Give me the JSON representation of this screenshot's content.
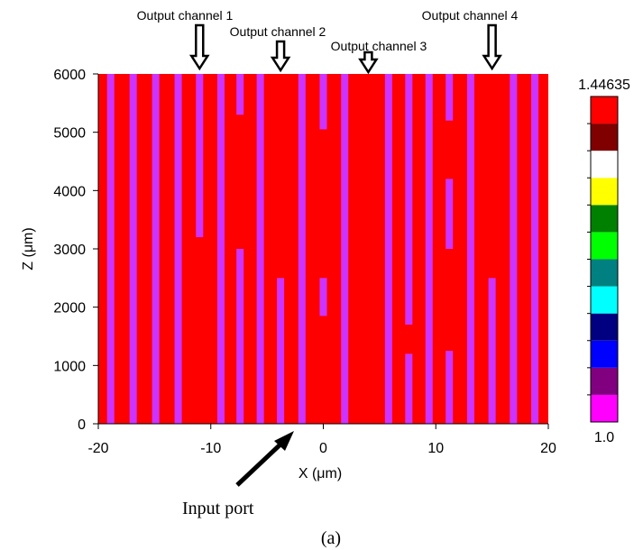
{
  "figure": {
    "caption": "(a)",
    "input_label": "Input port"
  },
  "chart_data": {
    "type": "heatmap",
    "xlabel": "X (μm)",
    "ylabel": "Z (μm)",
    "xlim": [
      -20,
      20
    ],
    "ylim": [
      0,
      6000
    ],
    "x_ticks": [
      "-20",
      "-10",
      "0",
      "10",
      "20"
    ],
    "y_ticks": [
      "0",
      "1000",
      "2000",
      "3000",
      "4000",
      "5000",
      "6000"
    ],
    "background_color": "#ff0000",
    "guide_color": "#cc33ff",
    "guides": [
      {
        "x": -18.9,
        "z0": 0,
        "z1": 6000
      },
      {
        "x": -16.9,
        "z0": 0,
        "z1": 6000
      },
      {
        "x": -14.9,
        "z0": 0,
        "z1": 6000
      },
      {
        "x": -12.9,
        "z0": 0,
        "z1": 6000
      },
      {
        "x": -11.0,
        "z0": 3200,
        "z1": 6000
      },
      {
        "x": -9.1,
        "z0": 0,
        "z1": 6000
      },
      {
        "x": -7.4,
        "z0": 0,
        "z1": 3000
      },
      {
        "x": -7.4,
        "z0": 5300,
        "z1": 6000
      },
      {
        "x": -5.6,
        "z0": 0,
        "z1": 6000
      },
      {
        "x": -3.8,
        "z0": 0,
        "z1": 2500
      },
      {
        "x": -1.9,
        "z0": 0,
        "z1": 6000
      },
      {
        "x": 0.0,
        "z0": 1850,
        "z1": 2500
      },
      {
        "x": 0.0,
        "z0": 5050,
        "z1": 6000
      },
      {
        "x": 1.9,
        "z0": 0,
        "z1": 6000
      },
      {
        "x": 5.8,
        "z0": 0,
        "z1": 6000
      },
      {
        "x": 7.6,
        "z0": 1700,
        "z1": 6000
      },
      {
        "x": 7.6,
        "z0": 0,
        "z1": 1200
      },
      {
        "x": 9.4,
        "z0": 0,
        "z1": 6000
      },
      {
        "x": 11.2,
        "z0": 0,
        "z1": 1250
      },
      {
        "x": 11.2,
        "z0": 3000,
        "z1": 4200
      },
      {
        "x": 11.2,
        "z0": 5200,
        "z1": 6000
      },
      {
        "x": 13.1,
        "z0": 0,
        "z1": 6000
      },
      {
        "x": 15.0,
        "z0": 0,
        "z1": 2500
      },
      {
        "x": 16.9,
        "z0": 0,
        "z1": 6000
      },
      {
        "x": 18.8,
        "z0": 0,
        "z1": 6000
      }
    ],
    "annotations": [
      {
        "text": "Output channel 1",
        "x": -11.0
      },
      {
        "text": "Output channel 2",
        "x": -3.8
      },
      {
        "text": "Output channel 3",
        "x": 4.0
      },
      {
        "text": "Output channel 4",
        "x": 15.0
      }
    ],
    "colorbar": {
      "max_label": "1.44635",
      "min_label": "1.0",
      "colors": [
        "#ff00ff",
        "#800080",
        "#0000ff",
        "#000080",
        "#00ffff",
        "#008080",
        "#00ff00",
        "#008000",
        "#ffff00",
        "#ffffff",
        "#800000",
        "#ff0000"
      ]
    }
  }
}
